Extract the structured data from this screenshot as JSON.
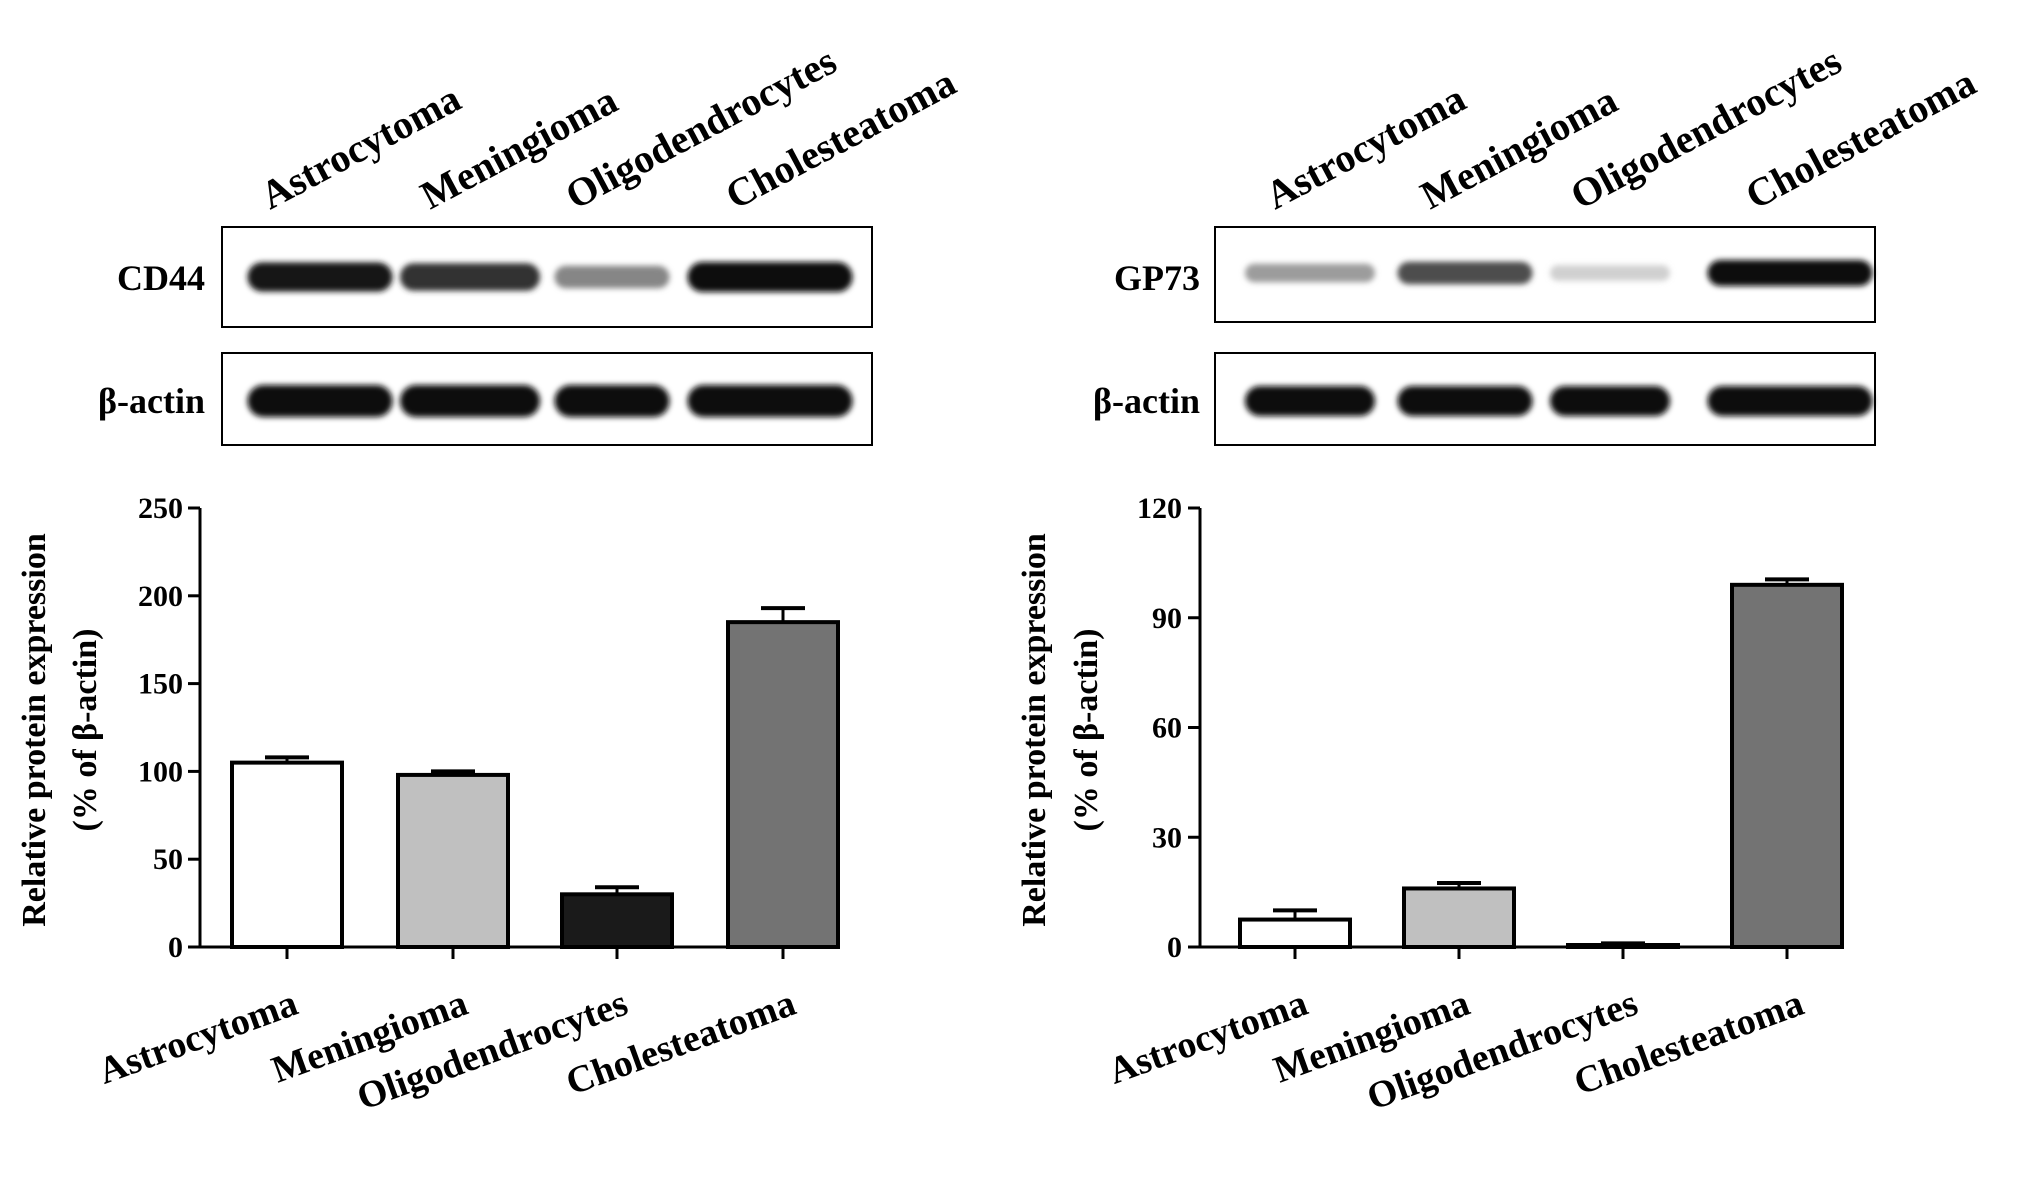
{
  "panels": [
    {
      "lanes": [
        "Astrocytoma",
        "Meningioma",
        "Oligodendrocytes",
        "Cholesteatoma"
      ],
      "blot_rows": [
        {
          "label": "CD44",
          "intensities": [
            0.95,
            0.82,
            0.45,
            1.0
          ]
        },
        {
          "label": "β-actin",
          "intensities": [
            1.0,
            1.0,
            1.0,
            1.0
          ]
        }
      ]
    },
    {
      "lanes": [
        "Astrocytoma",
        "Meningioma",
        "Oligodendrocytes",
        "Cholesteatoma"
      ],
      "blot_rows": [
        {
          "label": "GP73",
          "intensities": [
            0.35,
            0.7,
            0.12,
            1.0
          ]
        },
        {
          "label": "β-actin",
          "intensities": [
            1.0,
            1.0,
            1.0,
            1.0
          ]
        }
      ]
    }
  ],
  "chart_data": [
    {
      "type": "bar",
      "categories": [
        "Astrocytoma",
        "Meningioma",
        "Oligodendrocytes",
        "Cholesteatoma"
      ],
      "values": [
        105,
        98,
        30,
        185
      ],
      "errors": [
        3,
        2,
        4,
        8
      ],
      "bar_colors": [
        "#ffffff",
        "#c0c0c0",
        "#1a1a1a",
        "#737373"
      ],
      "ylabel": [
        "Relative protein expression",
        "(% of β-actin)"
      ],
      "ylim": [
        0,
        250
      ],
      "yticks": [
        0,
        50,
        100,
        150,
        200,
        250
      ],
      "grid": false
    },
    {
      "type": "bar",
      "categories": [
        "Astrocytoma",
        "Meningioma",
        "Oligodendrocytes",
        "Cholesteatoma"
      ],
      "values": [
        7.5,
        16,
        0.5,
        99
      ],
      "errors": [
        2.5,
        1.5,
        0.5,
        1.5
      ],
      "bar_colors": [
        "#ffffff",
        "#c0c0c0",
        "#1a1a1a",
        "#737373"
      ],
      "ylabel": [
        "Relative protein expression",
        "(% of β-actin)"
      ],
      "ylim": [
        0,
        120
      ],
      "yticks": [
        0,
        30,
        60,
        90,
        120
      ],
      "grid": false
    }
  ]
}
